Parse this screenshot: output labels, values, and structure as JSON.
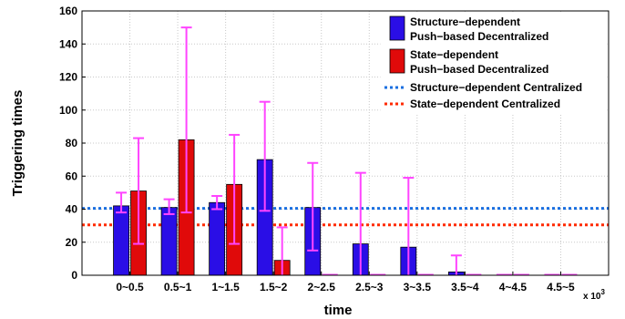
{
  "chart_data": {
    "type": "bar",
    "xlabel": "time",
    "ylabel": "Triggering times",
    "x_multiplier_label": "x 10",
    "x_multiplier_exponent": "3",
    "ylim": [
      0,
      160
    ],
    "yticks": [
      0,
      20,
      40,
      60,
      80,
      100,
      120,
      140,
      160
    ],
    "categories": [
      "0~0.5",
      "0.5~1",
      "1~1.5",
      "1.5~2",
      "2~2.5",
      "2.5~3",
      "3~3.5",
      "3.5~4",
      "4~4.5",
      "4.5~5"
    ],
    "grid": true,
    "legend_position": "top-right",
    "series": [
      {
        "name": "Structure−dependent Push−based Decentralized",
        "legend_lines": [
          "Structure−dependent",
          "Push−based Decentralized"
        ],
        "color": "#2a0ee6",
        "values": [
          42,
          41,
          44,
          70,
          41,
          19,
          17,
          2,
          0,
          0
        ],
        "err_low": [
          38,
          37,
          40,
          39,
          15,
          0,
          0,
          0,
          0,
          0
        ],
        "err_high": [
          50,
          46,
          48,
          105,
          68,
          62,
          59,
          12,
          0,
          0
        ]
      },
      {
        "name": "State−dependent Push−based Decentralized",
        "legend_lines": [
          "State−dependent",
          "Push−based Decentralized"
        ],
        "color": "#e00a0a",
        "values": [
          51,
          82,
          55,
          9,
          0,
          0,
          0,
          0,
          0,
          0
        ],
        "err_low": [
          19,
          38,
          19,
          0,
          0,
          0,
          0,
          0,
          0,
          0
        ],
        "err_high": [
          83,
          150,
          85,
          29,
          0,
          0,
          0,
          0,
          0,
          0
        ]
      }
    ],
    "reference_lines": [
      {
        "name": "Structure−dependent Centralized",
        "value": 40.5,
        "color": "#1a6fe0"
      },
      {
        "name": "State−dependent Centralized",
        "value": 30.5,
        "color": "#ff2a00"
      }
    ],
    "errorbar_color": "#ff44ff"
  }
}
